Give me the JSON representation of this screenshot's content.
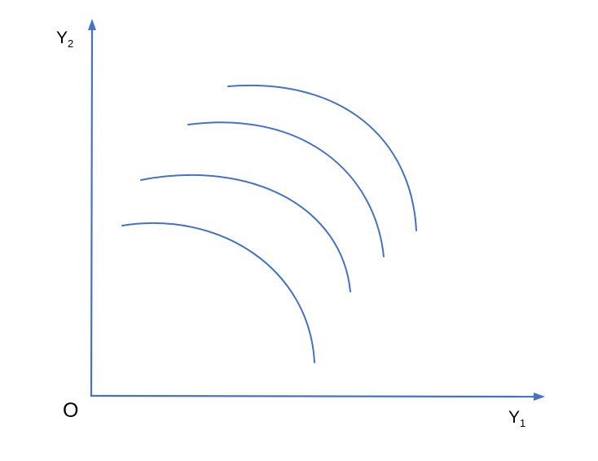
{
  "diagram": {
    "origin_label": "O",
    "x_axis": {
      "label": "Y",
      "subscript": "1"
    },
    "y_axis": {
      "label": "Y",
      "subscript": "2"
    },
    "curves": [
      {
        "id": "curve-1"
      },
      {
        "id": "curve-2"
      },
      {
        "id": "curve-3"
      },
      {
        "id": "curve-4"
      }
    ]
  },
  "colors": {
    "line": "#4472c4",
    "text": "#000000",
    "background": "#ffffff"
  }
}
